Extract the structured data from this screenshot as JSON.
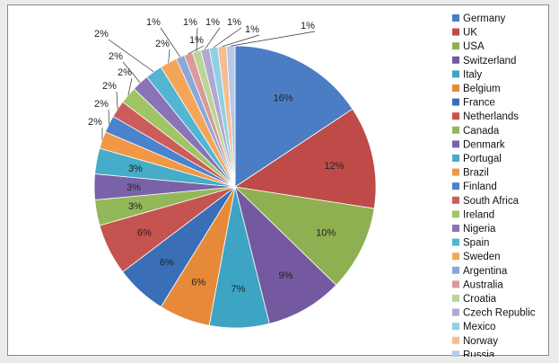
{
  "chart_data": {
    "type": "pie",
    "title": "",
    "legend_position": "right",
    "start_angle_deg": 0,
    "direction": "clockwise",
    "series": [
      {
        "label": "Germany",
        "value": 16,
        "value_label": "16%",
        "color": "#4a7dc4"
      },
      {
        "label": "UK",
        "value": 12,
        "value_label": "12%",
        "color": "#be4b48"
      },
      {
        "label": "USA",
        "value": 10,
        "value_label": "10%",
        "color": "#8fb050"
      },
      {
        "label": "Switzerland",
        "value": 9,
        "value_label": "9%",
        "color": "#7459a0"
      },
      {
        "label": "Italy",
        "value": 7,
        "value_label": "7%",
        "color": "#3ea4c4"
      },
      {
        "label": "Belgium",
        "value": 6,
        "value_label": "6%",
        "color": "#e68a3a"
      },
      {
        "label": "France",
        "value": 6,
        "value_label": "6%",
        "color": "#3a6fb8"
      },
      {
        "label": "Netherlands",
        "value": 6,
        "value_label": "6%",
        "color": "#c55350"
      },
      {
        "label": "Canada",
        "value": 3,
        "value_label": "3%",
        "color": "#93b85a"
      },
      {
        "label": "Denmark",
        "value": 3,
        "value_label": "3%",
        "color": "#7a62a8"
      },
      {
        "label": "Portugal",
        "value": 3,
        "value_label": "3%",
        "color": "#46acc8"
      },
      {
        "label": "Brazil",
        "value": 2,
        "value_label": "2%",
        "color": "#f09846"
      },
      {
        "label": "Finland",
        "value": 2,
        "value_label": "2%",
        "color": "#4a82cc"
      },
      {
        "label": "South Africa",
        "value": 2,
        "value_label": "2%",
        "color": "#cc5c5a"
      },
      {
        "label": "Ireland",
        "value": 2,
        "value_label": "2%",
        "color": "#a0c466"
      },
      {
        "label": "Nigeria",
        "value": 2,
        "value_label": "2%",
        "color": "#8a74b8"
      },
      {
        "label": "Spain",
        "value": 2,
        "value_label": "2%",
        "color": "#52b6d2"
      },
      {
        "label": "Sweden",
        "value": 2,
        "value_label": "2%",
        "color": "#f4a658"
      },
      {
        "label": "Argentina",
        "value": 1,
        "value_label": "1%",
        "color": "#8aa8d8"
      },
      {
        "label": "Australia",
        "value": 1,
        "value_label": "1%",
        "color": "#d99a98"
      },
      {
        "label": "Croatia",
        "value": 1,
        "value_label": "1%",
        "color": "#bcd596"
      },
      {
        "label": "Czech Republic",
        "value": 1,
        "value_label": "1%",
        "color": "#b3a6d2"
      },
      {
        "label": "Mexico",
        "value": 1,
        "value_label": "1%",
        "color": "#8fd0e4"
      },
      {
        "label": "Norway",
        "value": 1,
        "value_label": "1%",
        "color": "#f6bd92"
      },
      {
        "label": "Russia",
        "value": 1,
        "value_label": "1%",
        "color": "#b7c8e8"
      }
    ]
  }
}
